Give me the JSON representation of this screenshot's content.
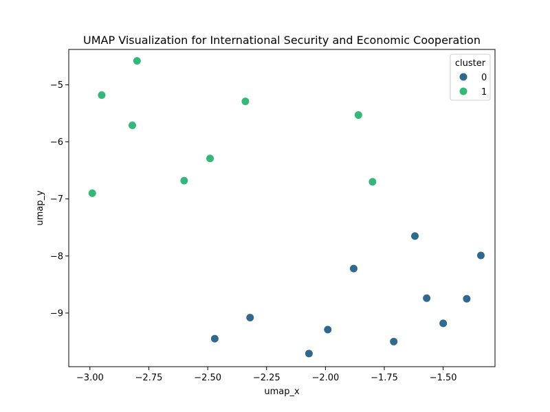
{
  "chart_data": {
    "type": "scatter",
    "title": "UMAP Visualization for International Security and Economic Cooperation",
    "xlabel": "umap_x",
    "ylabel": "umap_y",
    "xlim": [
      -3.09,
      -1.28
    ],
    "ylim": [
      -9.94,
      -4.38
    ],
    "xticks": [
      -3.0,
      -2.75,
      -2.5,
      -2.25,
      -2.0,
      -1.75,
      -1.5
    ],
    "xtick_labels": [
      "−3.00",
      "−2.75",
      "−2.50",
      "−2.25",
      "−2.00",
      "−1.75",
      "−1.50"
    ],
    "yticks": [
      -9,
      -8,
      -7,
      -6,
      -5
    ],
    "ytick_labels": [
      "−9",
      "−8",
      "−7",
      "−6",
      "−5"
    ],
    "grid": false,
    "legend": {
      "title": "cluster",
      "placement": "top-right",
      "entries": [
        {
          "label": "0",
          "color": "#30688e"
        },
        {
          "label": "1",
          "color": "#35b779"
        }
      ]
    },
    "series": [
      {
        "name": "0",
        "color": "#30688e",
        "points": [
          {
            "x": -1.62,
            "y": -7.65
          },
          {
            "x": -1.34,
            "y": -7.99
          },
          {
            "x": -1.88,
            "y": -8.22
          },
          {
            "x": -1.57,
            "y": -8.74
          },
          {
            "x": -1.4,
            "y": -8.75
          },
          {
            "x": -2.32,
            "y": -9.08
          },
          {
            "x": -1.5,
            "y": -9.18
          },
          {
            "x": -1.99,
            "y": -9.29
          },
          {
            "x": -2.47,
            "y": -9.45
          },
          {
            "x": -1.71,
            "y": -9.5
          },
          {
            "x": -2.07,
            "y": -9.71
          }
        ]
      },
      {
        "name": "1",
        "color": "#35b779",
        "points": [
          {
            "x": -2.8,
            "y": -4.58
          },
          {
            "x": -2.95,
            "y": -5.18
          },
          {
            "x": -2.34,
            "y": -5.29
          },
          {
            "x": -1.86,
            "y": -5.53
          },
          {
            "x": -2.82,
            "y": -5.71
          },
          {
            "x": -2.49,
            "y": -6.29
          },
          {
            "x": -2.6,
            "y": -6.68
          },
          {
            "x": -1.8,
            "y": -6.7
          },
          {
            "x": -2.99,
            "y": -6.9
          }
        ]
      }
    ]
  }
}
